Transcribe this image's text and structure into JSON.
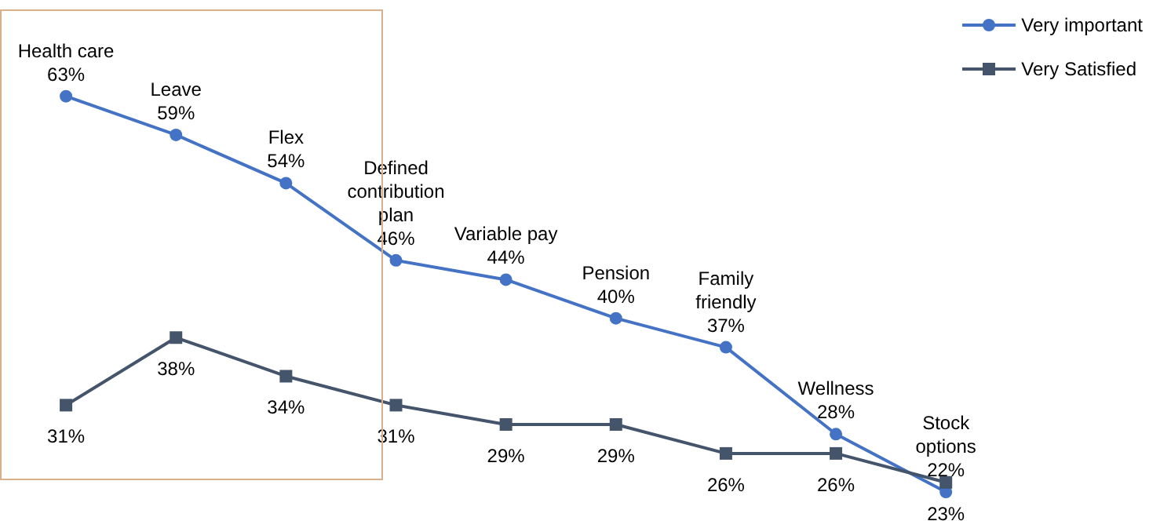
{
  "chart_data": {
    "type": "line",
    "categories": [
      "Health care",
      "Leave",
      "Flex",
      "Defined contribution plan",
      "Variable pay",
      "Pension",
      "Family friendly",
      "Wellness",
      "Stock options"
    ],
    "series": [
      {
        "name": "Very important",
        "color": "#4472c4",
        "marker": "circle",
        "values": [
          63,
          59,
          54,
          46,
          44,
          40,
          37,
          28,
          22
        ],
        "value_labels": [
          "63%",
          "59%",
          "54%",
          "46%",
          "44%",
          "40%",
          "37%",
          "28%",
          "22%"
        ]
      },
      {
        "name": "Very Satisfied",
        "color": "#44546a",
        "marker": "square",
        "values": [
          31,
          38,
          34,
          31,
          29,
          29,
          26,
          26,
          23
        ],
        "value_labels": [
          "31%",
          "38%",
          "34%",
          "31%",
          "29%",
          "29%",
          "26%",
          "26%",
          "23%"
        ]
      }
    ],
    "legend": "top right",
    "grid": false
  }
}
